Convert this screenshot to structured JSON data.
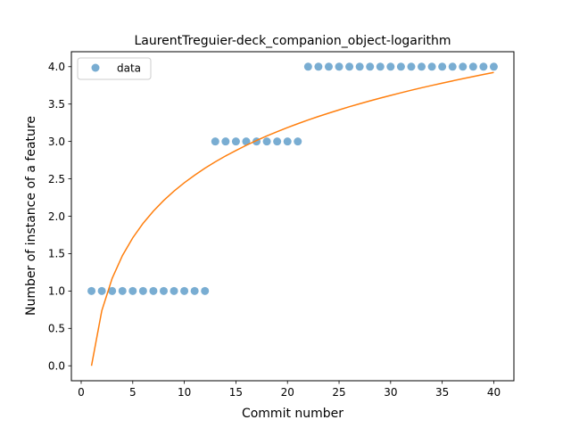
{
  "chart_data": {
    "type": "scatter",
    "title": "LaurentTreguier-deck_companion_object-logarithm",
    "xlabel": "Commit number",
    "ylabel": "Number of instance of a feature",
    "xlim": [
      -0.95,
      41.95
    ],
    "ylim": [
      -0.2,
      4.2
    ],
    "xticks": [
      0,
      5,
      10,
      15,
      20,
      25,
      30,
      35,
      40
    ],
    "yticks": [
      0.0,
      0.5,
      1.0,
      1.5,
      2.0,
      2.5,
      3.0,
      3.5,
      4.0
    ],
    "xtick_labels": [
      "0",
      "5",
      "10",
      "15",
      "20",
      "25",
      "30",
      "35",
      "40"
    ],
    "ytick_labels": [
      "0.0",
      "0.5",
      "1.0",
      "1.5",
      "2.0",
      "2.5",
      "3.0",
      "3.5",
      "4.0"
    ],
    "grid": false,
    "legend": {
      "placement": "upper-left",
      "entries": [
        "data"
      ]
    },
    "series": [
      {
        "name": "data",
        "kind": "scatter",
        "color": "#1f77b4",
        "x": [
          1,
          2,
          3,
          4,
          5,
          6,
          7,
          8,
          9,
          10,
          11,
          12,
          13,
          14,
          15,
          16,
          17,
          18,
          19,
          20,
          21,
          22,
          23,
          24,
          25,
          26,
          27,
          28,
          29,
          30,
          31,
          32,
          33,
          34,
          35,
          36,
          37,
          38,
          39,
          40
        ],
        "y": [
          1,
          1,
          1,
          1,
          1,
          1,
          1,
          1,
          1,
          1,
          1,
          1,
          3,
          3,
          3,
          3,
          3,
          3,
          3,
          3,
          3,
          4,
          4,
          4,
          4,
          4,
          4,
          4,
          4,
          4,
          4,
          4,
          4,
          4,
          4,
          4,
          4,
          4,
          4,
          4
        ]
      },
      {
        "kind": "line",
        "color": "#ff7f0e",
        "x": [
          1,
          2,
          3,
          4,
          5,
          6,
          7,
          8,
          9,
          10,
          11,
          12,
          13,
          14,
          15,
          16,
          17,
          18,
          19,
          20,
          21,
          22,
          23,
          24,
          25,
          26,
          27,
          28,
          29,
          30,
          31,
          32,
          33,
          34,
          35,
          36,
          37,
          38,
          39,
          40
        ],
        "y": [
          0.0,
          0.737,
          1.168,
          1.474,
          1.711,
          1.905,
          2.069,
          2.211,
          2.336,
          2.448,
          2.549,
          2.642,
          2.727,
          2.806,
          2.879,
          2.948,
          3.013,
          3.074,
          3.131,
          3.186,
          3.237,
          3.287,
          3.334,
          3.379,
          3.422,
          3.464,
          3.504,
          3.543,
          3.58,
          3.616,
          3.651,
          3.685,
          3.718,
          3.749,
          3.78,
          3.81,
          3.839,
          3.868,
          3.896,
          3.923
        ]
      }
    ]
  }
}
